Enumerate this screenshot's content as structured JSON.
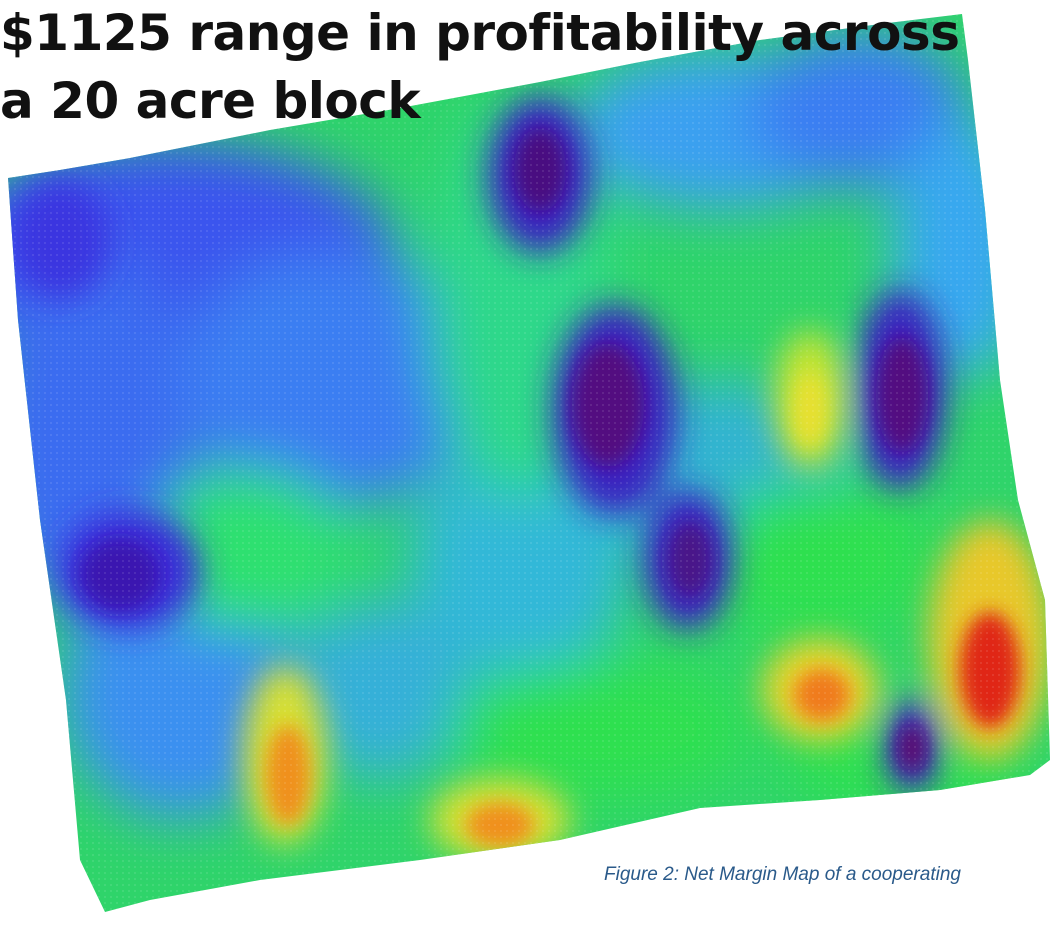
{
  "headline": {
    "line_1": "$1125 range in profitability across",
    "line_2": "a 20 acre block"
  },
  "caption": "Figure 2: Net Margin Map of a cooperating",
  "map": {
    "subject": "net margin (profitability) heat map of a field block",
    "color_ramp": [
      "#3a0a78",
      "#2a2ae0",
      "#2f7cf0",
      "#1fc8c8",
      "#2ee02e",
      "#e8e82a",
      "#f28a1c",
      "#e01818"
    ],
    "background_color": "#30c850",
    "zones": [
      {
        "level": "low",
        "color": "#4a1090",
        "area": "upper-center"
      },
      {
        "level": "low",
        "color": "#4a1090",
        "area": "center"
      },
      {
        "level": "low",
        "color": "#4a1090",
        "area": "center-right"
      },
      {
        "level": "low",
        "color": "#4a1090",
        "area": "right"
      },
      {
        "level": "low",
        "color": "#3a2ad8",
        "area": "left"
      },
      {
        "level": "low",
        "color": "#4a1090",
        "area": "lower-right"
      },
      {
        "level": "high",
        "color": "#f0a020",
        "area": "lower-left"
      },
      {
        "level": "high",
        "color": "#f0a020",
        "area": "bottom-center"
      },
      {
        "level": "high",
        "color": "#f06020",
        "area": "right-center"
      },
      {
        "level": "high",
        "color": "#e01818",
        "area": "far-right"
      },
      {
        "level": "medium",
        "color": "#d8e030",
        "area": "center-right"
      }
    ]
  }
}
